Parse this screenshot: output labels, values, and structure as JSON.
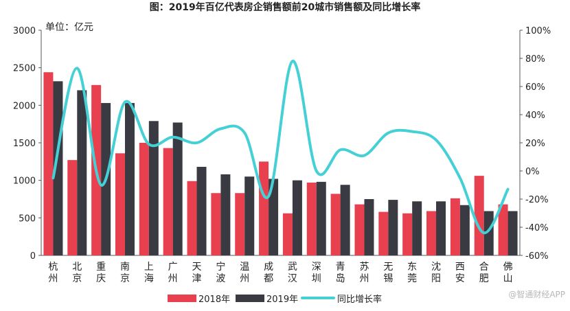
{
  "chart_data": {
    "type": "bar",
    "title": "图：2019年百亿代表房企销售额前20城市销售额及同比增长率",
    "unit_label": "单位：亿元",
    "categories": [
      "杭州",
      "北京",
      "重庆",
      "南京",
      "上海",
      "广州",
      "天津",
      "宁波",
      "温州",
      "成都",
      "武汉",
      "深圳",
      "青岛",
      "苏州",
      "无锡",
      "东莞",
      "沈阳",
      "西安",
      "合肥",
      "佛山"
    ],
    "series": [
      {
        "name": "2018年",
        "type": "bar",
        "axis": "left",
        "color": "#e8404f",
        "values": [
          2440,
          1270,
          2270,
          1360,
          1500,
          1430,
          990,
          830,
          830,
          1250,
          560,
          970,
          820,
          680,
          580,
          560,
          590,
          760,
          1060,
          680
        ]
      },
      {
        "name": "2019年",
        "type": "bar",
        "axis": "left",
        "color": "#3a3a42",
        "values": [
          2320,
          2200,
          2030,
          2030,
          1790,
          1770,
          1180,
          1080,
          1050,
          1020,
          1000,
          980,
          940,
          750,
          740,
          720,
          720,
          670,
          590,
          590
        ]
      },
      {
        "name": "同比增长率",
        "type": "line",
        "axis": "right",
        "color": "#45d0d6",
        "values": [
          -5,
          73,
          -10,
          49,
          19,
          24,
          20,
          30,
          27,
          -18,
          78,
          0,
          15,
          11,
          27,
          28,
          22,
          -5,
          -44,
          -13
        ]
      }
    ],
    "y_left": {
      "min": 0,
      "max": 3000,
      "ticks": [
        0,
        500,
        1000,
        1500,
        2000,
        2500,
        3000
      ]
    },
    "y_right": {
      "min": -60,
      "max": 100,
      "ticks": [
        -60,
        -40,
        -20,
        0,
        20,
        40,
        60,
        80,
        100
      ],
      "suffix": "%"
    },
    "legend_position": "bottom",
    "grid": false
  },
  "watermark": "@智通财经APP"
}
